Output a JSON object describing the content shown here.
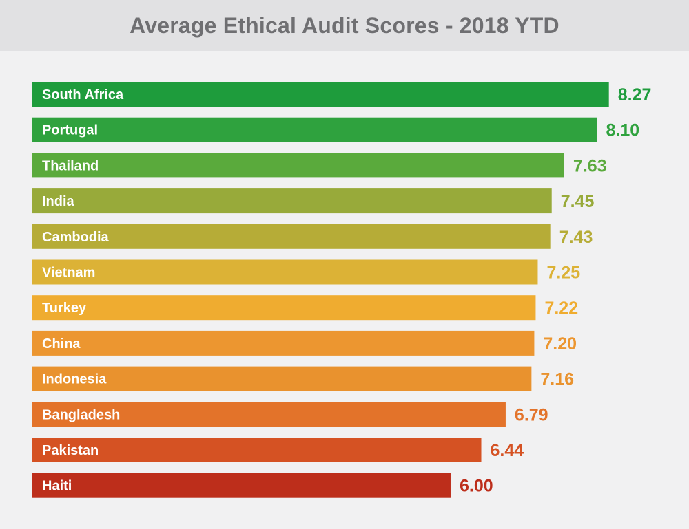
{
  "chart_data": {
    "type": "bar",
    "orientation": "horizontal",
    "title": "Average Ethical Audit Scores - 2018 YTD",
    "categories": [
      "South Africa",
      "Portugal",
      "Thailand",
      "India",
      "Cambodia",
      "Vietnam",
      "Turkey",
      "China",
      "Indonesia",
      "Bangladesh",
      "Pakistan",
      "Haiti"
    ],
    "values": [
      8.27,
      8.1,
      7.63,
      7.45,
      7.43,
      7.25,
      7.22,
      7.2,
      7.16,
      6.79,
      6.44,
      6.0
    ],
    "value_labels": [
      "8.27",
      "8.10",
      "7.63",
      "7.45",
      "7.43",
      "7.25",
      "7.22",
      "7.20",
      "7.16",
      "6.79",
      "6.44",
      "6.00"
    ],
    "colors": [
      "#1e9c3c",
      "#2fa23e",
      "#5aaa3c",
      "#98aa3a",
      "#b6ac37",
      "#dcb236",
      "#efac30",
      "#ec9630",
      "#e9922e",
      "#e3732a",
      "#d55223",
      "#bd2e1b"
    ],
    "grid": false,
    "legend": "none"
  }
}
